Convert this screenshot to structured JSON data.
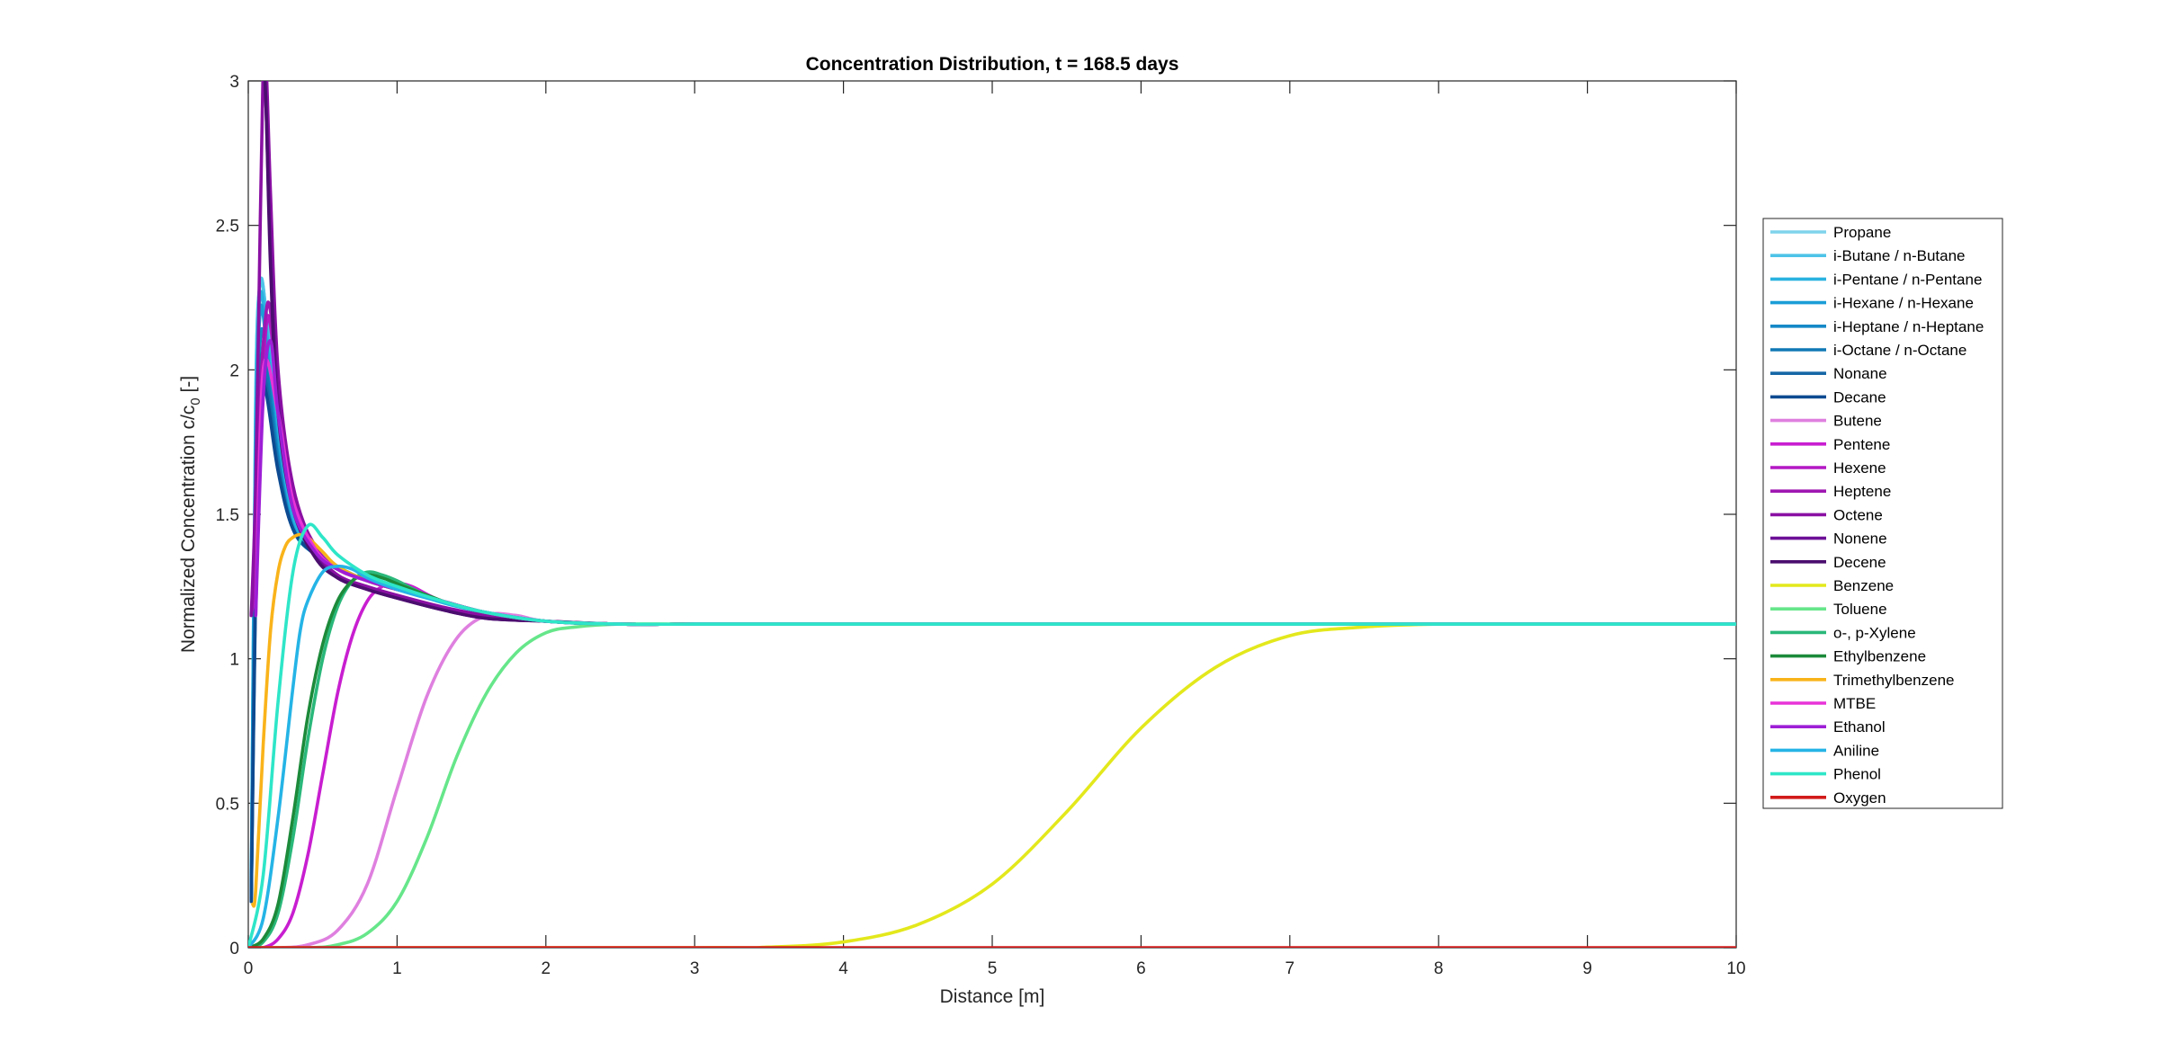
{
  "chart_data": {
    "type": "line",
    "title": "Concentration Distribution, t = 168.5 days",
    "xlabel": "Distance [m]",
    "ylabel_main": "Normalized Concentration c/c",
    "ylabel_sub": "0",
    "ylabel_suffix": " [-]",
    "xlim": [
      0,
      10
    ],
    "ylim": [
      0,
      3
    ],
    "x_ticks": [
      0,
      1,
      2,
      3,
      4,
      5,
      6,
      7,
      8,
      9,
      10
    ],
    "x_tick_labels": [
      "0",
      "1",
      "2",
      "3",
      "4",
      "5",
      "6",
      "7",
      "8",
      "9",
      "10"
    ],
    "y_ticks": [
      0,
      0.5,
      1,
      1.5,
      2,
      2.5,
      3
    ],
    "y_tick_labels": [
      "0",
      "0.5",
      "1",
      "1.5",
      "2",
      "2.5",
      "3"
    ],
    "grid": false,
    "legend_position": "right",
    "series": [
      {
        "name": "Propane",
        "color": "#7fd4ec",
        "x": [
          0.02,
          0.05,
          0.08,
          0.12,
          0.2,
          0.3,
          0.45,
          0.6,
          0.8,
          1.0,
          1.3,
          1.6,
          2.0,
          2.5,
          3,
          4,
          6,
          8,
          10
        ],
        "y": [
          0.2,
          1.9,
          2.3,
          2.2,
          1.8,
          1.5,
          1.38,
          1.32,
          1.27,
          1.24,
          1.2,
          1.16,
          1.13,
          1.12,
          1.12,
          1.12,
          1.12,
          1.12,
          1.12
        ]
      },
      {
        "name": "i-Butane / n-Butane",
        "color": "#4ec3e8",
        "x": [
          0.02,
          0.05,
          0.08,
          0.12,
          0.2,
          0.3,
          0.45,
          0.6,
          0.8,
          1.0,
          1.3,
          1.6,
          2.0,
          2.5,
          3,
          4,
          6,
          8,
          10
        ],
        "y": [
          0.2,
          1.9,
          2.3,
          2.2,
          1.8,
          1.5,
          1.38,
          1.32,
          1.27,
          1.24,
          1.2,
          1.16,
          1.13,
          1.12,
          1.12,
          1.12,
          1.12,
          1.12,
          1.12
        ]
      },
      {
        "name": "i-Pentane / n-Pentane",
        "color": "#29b2e0",
        "x": [
          0.02,
          0.05,
          0.08,
          0.12,
          0.2,
          0.3,
          0.45,
          0.6,
          0.8,
          1.0,
          1.3,
          1.6,
          2.0,
          2.5,
          3,
          4,
          6,
          8,
          10
        ],
        "y": [
          0.2,
          1.8,
          2.25,
          2.15,
          1.75,
          1.48,
          1.37,
          1.31,
          1.27,
          1.24,
          1.2,
          1.16,
          1.13,
          1.12,
          1.12,
          1.12,
          1.12,
          1.12,
          1.12
        ]
      },
      {
        "name": "i-Hexane / n-Hexane",
        "color": "#1a9dd6",
        "x": [
          0.02,
          0.05,
          0.08,
          0.12,
          0.2,
          0.3,
          0.45,
          0.6,
          0.8,
          1.0,
          1.3,
          1.6,
          2.0,
          2.5,
          3,
          4,
          6,
          8,
          10
        ],
        "y": [
          0.18,
          1.7,
          2.2,
          2.1,
          1.72,
          1.46,
          1.36,
          1.31,
          1.27,
          1.24,
          1.2,
          1.16,
          1.13,
          1.12,
          1.12,
          1.12,
          1.12,
          1.12,
          1.12
        ]
      },
      {
        "name": "i-Heptane / n-Heptane",
        "color": "#1589c7",
        "x": [
          0.02,
          0.05,
          0.08,
          0.12,
          0.2,
          0.3,
          0.45,
          0.6,
          0.8,
          1.0,
          1.3,
          1.6,
          2.0,
          2.5,
          3,
          4,
          6,
          8,
          10
        ],
        "y": [
          0.17,
          1.5,
          2.1,
          2.05,
          1.7,
          1.45,
          1.36,
          1.31,
          1.27,
          1.24,
          1.2,
          1.16,
          1.13,
          1.12,
          1.12,
          1.12,
          1.12,
          1.12,
          1.12
        ]
      },
      {
        "name": "i-Octane / n-Octane",
        "color": "#1078b5",
        "x": [
          0.02,
          0.05,
          0.08,
          0.12,
          0.2,
          0.3,
          0.45,
          0.6,
          0.8,
          1.0,
          1.3,
          1.6,
          2.0,
          2.5,
          3,
          4,
          6,
          8,
          10
        ],
        "y": [
          0.17,
          1.4,
          2.0,
          2.0,
          1.68,
          1.45,
          1.36,
          1.31,
          1.27,
          1.24,
          1.2,
          1.16,
          1.13,
          1.12,
          1.12,
          1.12,
          1.12,
          1.12,
          1.12
        ]
      },
      {
        "name": "Nonane",
        "color": "#1667a6",
        "x": [
          0.02,
          0.05,
          0.08,
          0.12,
          0.2,
          0.3,
          0.45,
          0.6,
          0.8,
          1.0,
          1.3,
          1.6,
          2.0,
          2.5,
          3,
          4,
          6,
          8,
          10
        ],
        "y": [
          0.16,
          1.3,
          1.95,
          1.95,
          1.66,
          1.45,
          1.36,
          1.31,
          1.27,
          1.24,
          1.2,
          1.16,
          1.13,
          1.12,
          1.12,
          1.12,
          1.12,
          1.12,
          1.12
        ]
      },
      {
        "name": "Decane",
        "color": "#0d4a91",
        "x": [
          0.02,
          0.05,
          0.08,
          0.12,
          0.2,
          0.3,
          0.45,
          0.6,
          0.8,
          1.0,
          1.3,
          1.6,
          2.0,
          2.5,
          3,
          4,
          6,
          8,
          10
        ],
        "y": [
          0.16,
          1.25,
          1.9,
          1.92,
          1.65,
          1.45,
          1.36,
          1.31,
          1.27,
          1.24,
          1.2,
          1.16,
          1.13,
          1.12,
          1.12,
          1.12,
          1.12,
          1.12,
          1.12
        ]
      },
      {
        "name": "Butene",
        "color": "#df80df",
        "x": [
          0,
          0.2,
          0.4,
          0.6,
          0.8,
          1.0,
          1.2,
          1.4,
          1.6,
          1.8,
          2.0,
          2.5,
          3,
          4,
          6,
          8,
          10
        ],
        "y": [
          0.0,
          0.0,
          0.01,
          0.06,
          0.22,
          0.55,
          0.87,
          1.07,
          1.15,
          1.15,
          1.13,
          1.12,
          1.12,
          1.12,
          1.12,
          1.12,
          1.12
        ]
      },
      {
        "name": "Pentene",
        "color": "#c81ed0",
        "x": [
          0,
          0.1,
          0.2,
          0.3,
          0.4,
          0.5,
          0.6,
          0.7,
          0.8,
          0.9,
          1.0,
          1.1,
          1.3,
          1.6,
          2.0,
          2.5,
          3,
          4,
          6,
          8,
          10
        ],
        "y": [
          0.0,
          0.0,
          0.03,
          0.12,
          0.32,
          0.6,
          0.88,
          1.08,
          1.2,
          1.25,
          1.26,
          1.25,
          1.2,
          1.16,
          1.13,
          1.12,
          1.12,
          1.12,
          1.12,
          1.12,
          1.12
        ]
      },
      {
        "name": "Hexene",
        "color": "#b418c4",
        "x": [
          0.02,
          0.05,
          0.08,
          0.12,
          0.15,
          0.2,
          0.3,
          0.45,
          0.6,
          0.8,
          1.0,
          1.3,
          1.6,
          2.0,
          2.5,
          3,
          4,
          6,
          8,
          10
        ],
        "y": [
          1.15,
          1.3,
          1.8,
          2.15,
          2.15,
          1.9,
          1.55,
          1.38,
          1.31,
          1.27,
          1.24,
          1.2,
          1.16,
          1.13,
          1.12,
          1.12,
          1.12,
          1.12,
          1.12,
          1.12
        ]
      },
      {
        "name": "Heptene",
        "color": "#9f17b2",
        "x": [
          0.02,
          0.05,
          0.08,
          0.12,
          0.15,
          0.2,
          0.3,
          0.45,
          0.6,
          0.8,
          1.0,
          1.3,
          1.6,
          2.0,
          2.5,
          3,
          4,
          6,
          8,
          10
        ],
        "y": [
          1.15,
          1.35,
          1.9,
          2.2,
          2.2,
          1.95,
          1.58,
          1.39,
          1.31,
          1.27,
          1.24,
          1.2,
          1.16,
          1.13,
          1.12,
          1.12,
          1.12,
          1.12,
          1.12,
          1.12
        ]
      },
      {
        "name": "Octene",
        "color": "#8a10a3",
        "x": [
          0.02,
          0.05,
          0.08,
          0.1,
          0.12,
          0.15,
          0.2,
          0.3,
          0.45,
          0.6,
          0.8,
          1.0,
          1.3,
          1.6,
          2.0,
          2.5,
          3,
          4,
          6,
          8,
          10
        ],
        "y": [
          1.15,
          1.6,
          2.5,
          3.05,
          3.05,
          2.6,
          2.0,
          1.6,
          1.38,
          1.29,
          1.25,
          1.22,
          1.18,
          1.15,
          1.13,
          1.12,
          1.12,
          1.12,
          1.12,
          1.12,
          1.12
        ]
      },
      {
        "name": "Nonene",
        "color": "#6c0f96",
        "x": [
          0.05,
          0.08,
          0.1,
          0.12,
          0.15,
          0.2,
          0.3,
          0.45,
          0.6,
          0.8,
          1.0,
          1.3,
          1.6,
          2.0,
          2.5,
          3,
          4,
          6,
          8,
          10
        ],
        "y": [
          3.1,
          3.1,
          3.1,
          2.9,
          2.4,
          1.9,
          1.55,
          1.36,
          1.28,
          1.24,
          1.21,
          1.17,
          1.14,
          1.13,
          1.12,
          1.12,
          1.12,
          1.12,
          1.12,
          1.12
        ]
      },
      {
        "name": "Decene",
        "color": "#4b0e6e",
        "x": [
          0.08,
          0.1,
          0.12,
          0.15,
          0.2,
          0.3,
          0.45,
          0.6,
          0.8,
          1.0,
          1.3,
          1.6,
          2.0,
          2.5,
          3,
          4,
          6,
          8,
          10
        ],
        "y": [
          3.1,
          3.1,
          2.9,
          2.35,
          1.85,
          1.52,
          1.35,
          1.28,
          1.24,
          1.21,
          1.17,
          1.14,
          1.13,
          1.12,
          1.12,
          1.12,
          1.12,
          1.12,
          1.12
        ]
      },
      {
        "name": "Benzene",
        "color": "#e3e81c",
        "x": [
          0,
          3.0,
          3.5,
          4.0,
          4.5,
          5.0,
          5.5,
          6.0,
          6.5,
          7.0,
          7.5,
          8.0,
          8.5,
          10
        ],
        "y": [
          0.0,
          0.0,
          0.002,
          0.02,
          0.08,
          0.22,
          0.47,
          0.76,
          0.97,
          1.08,
          1.11,
          1.12,
          1.12,
          1.12
        ]
      },
      {
        "name": "Toluene",
        "color": "#66e68a",
        "x": [
          0,
          0.4,
          0.6,
          0.8,
          1.0,
          1.2,
          1.4,
          1.6,
          1.8,
          2.0,
          2.2,
          2.5,
          3,
          4,
          6,
          8,
          10
        ],
        "y": [
          0.0,
          0.0,
          0.01,
          0.05,
          0.16,
          0.38,
          0.66,
          0.88,
          1.02,
          1.09,
          1.11,
          1.12,
          1.12,
          1.12,
          1.12,
          1.12,
          1.12
        ]
      },
      {
        "name": "o-, p-Xylene",
        "color": "#2ab87a",
        "x": [
          0,
          0.1,
          0.2,
          0.3,
          0.4,
          0.5,
          0.6,
          0.7,
          0.8,
          0.9,
          1.0,
          1.2,
          1.5,
          2.0,
          2.5,
          3,
          4,
          6,
          8,
          10
        ],
        "y": [
          0.0,
          0.02,
          0.12,
          0.38,
          0.72,
          1.0,
          1.18,
          1.27,
          1.3,
          1.29,
          1.27,
          1.22,
          1.17,
          1.13,
          1.12,
          1.12,
          1.12,
          1.12,
          1.12,
          1.12
        ]
      },
      {
        "name": "Ethylbenzene",
        "color": "#1c8a3a",
        "x": [
          0,
          0.1,
          0.2,
          0.3,
          0.4,
          0.5,
          0.6,
          0.7,
          0.8,
          0.9,
          1.0,
          1.2,
          1.5,
          2.0,
          2.5,
          3,
          4,
          6,
          8,
          10
        ],
        "y": [
          0.0,
          0.03,
          0.15,
          0.45,
          0.8,
          1.05,
          1.2,
          1.27,
          1.29,
          1.28,
          1.26,
          1.22,
          1.17,
          1.13,
          1.12,
          1.12,
          1.12,
          1.12,
          1.12,
          1.12
        ]
      },
      {
        "name": "Trimethylbenzene",
        "color": "#f9b31a",
        "x": [
          0.03,
          0.05,
          0.1,
          0.15,
          0.2,
          0.25,
          0.3,
          0.35,
          0.4,
          0.5,
          0.6,
          0.8,
          1.0,
          1.3,
          1.6,
          2.0,
          2.5,
          3,
          4,
          6,
          8,
          10
        ],
        "y": [
          0.15,
          0.2,
          0.7,
          1.1,
          1.3,
          1.39,
          1.42,
          1.43,
          1.42,
          1.37,
          1.32,
          1.27,
          1.24,
          1.2,
          1.16,
          1.13,
          1.12,
          1.12,
          1.12,
          1.12,
          1.12,
          1.12
        ]
      },
      {
        "name": "MTBE",
        "color": "#e834d8",
        "x": [
          0.05,
          0.1,
          0.2,
          0.3,
          0.45,
          0.6,
          0.8,
          1.0,
          1.3,
          1.6,
          2.0,
          2.5,
          3,
          4,
          6,
          8,
          10
        ],
        "y": [
          1.15,
          2.0,
          1.85,
          1.55,
          1.38,
          1.31,
          1.27,
          1.24,
          1.2,
          1.16,
          1.13,
          1.12,
          1.12,
          1.12,
          1.12,
          1.12,
          1.12
        ]
      },
      {
        "name": "Ethanol",
        "color": "#9d1ed6",
        "x": [
          0.05,
          0.1,
          0.15,
          0.2,
          0.3,
          0.45,
          0.6,
          0.8,
          1.0,
          1.3,
          1.6,
          2.0,
          2.5,
          3,
          4,
          6,
          8,
          10
        ],
        "y": [
          1.15,
          1.9,
          2.1,
          1.85,
          1.52,
          1.37,
          1.31,
          1.27,
          1.24,
          1.2,
          1.16,
          1.13,
          1.12,
          1.12,
          1.12,
          1.12,
          1.12,
          1.12
        ]
      },
      {
        "name": "Aniline",
        "color": "#25b4e6",
        "x": [
          0,
          0.1,
          0.2,
          0.3,
          0.35,
          0.4,
          0.5,
          0.6,
          0.7,
          0.8,
          1.0,
          1.2,
          1.5,
          2.0,
          2.5,
          3,
          4,
          6,
          8,
          10
        ],
        "y": [
          0.0,
          0.1,
          0.45,
          0.9,
          1.1,
          1.2,
          1.3,
          1.32,
          1.31,
          1.28,
          1.24,
          1.21,
          1.17,
          1.13,
          1.12,
          1.12,
          1.12,
          1.12,
          1.12,
          1.12
        ]
      },
      {
        "name": "Phenol",
        "color": "#2ee6c8",
        "x": [
          0,
          0.1,
          0.2,
          0.3,
          0.4,
          0.5,
          0.6,
          0.8,
          1.0,
          1.3,
          1.6,
          2.0,
          2.5,
          3,
          4,
          6,
          8,
          10
        ],
        "y": [
          0.0,
          0.25,
          0.85,
          1.3,
          1.46,
          1.42,
          1.36,
          1.29,
          1.25,
          1.2,
          1.16,
          1.13,
          1.12,
          1.12,
          1.12,
          1.12,
          1.12,
          1.12
        ]
      },
      {
        "name": "Oxygen",
        "color": "#d21b1b",
        "x": [
          0,
          10
        ],
        "y": [
          0.0,
          0.0
        ]
      }
    ]
  }
}
